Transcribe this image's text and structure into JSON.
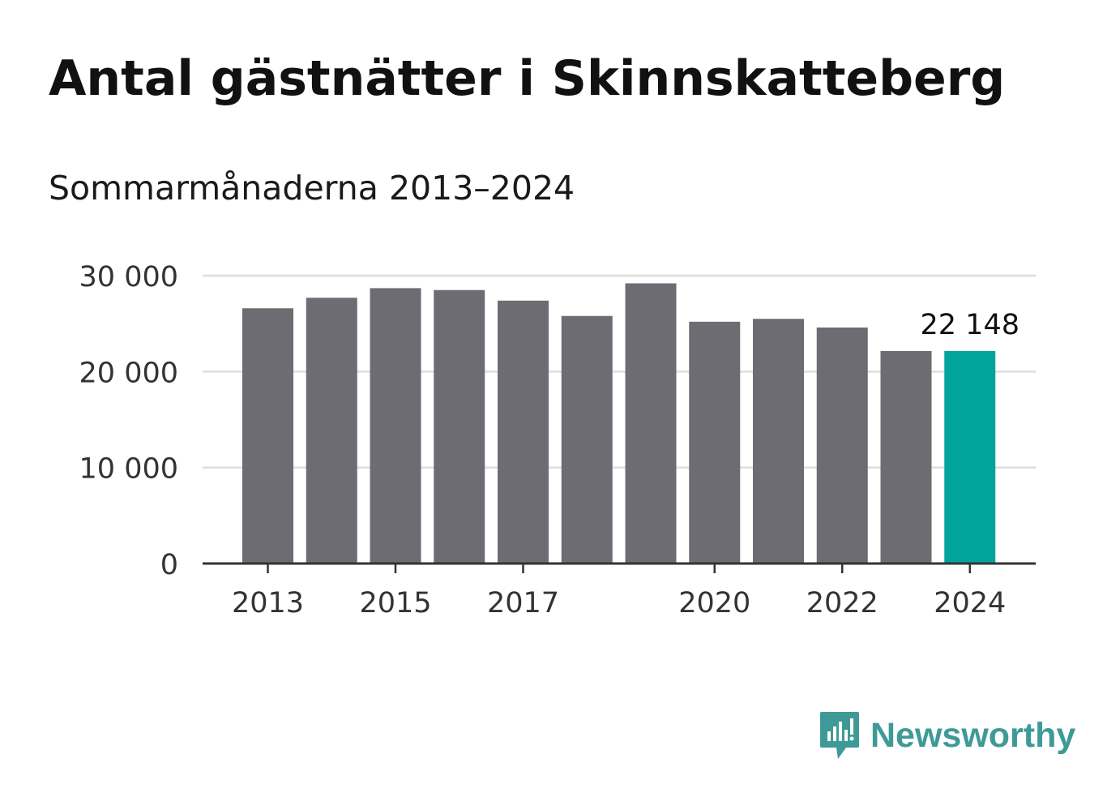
{
  "chart_data": {
    "type": "bar",
    "title": "Antal gästnätter i Skinnskatteberg",
    "subtitle": "Sommarmånaderna 2013–2024",
    "categories": [
      "2013",
      "2014",
      "2015",
      "2016",
      "2017",
      "2018",
      "2019",
      "2020",
      "2021",
      "2022",
      "2023",
      "2024"
    ],
    "values": [
      26600,
      27700,
      28700,
      28500,
      27400,
      25800,
      29200,
      25200,
      25500,
      24600,
      22148,
      22148
    ],
    "x_tick_labels": [
      "2013",
      "2015",
      "2017",
      "2020",
      "2022",
      "2024"
    ],
    "y_ticks": [
      0,
      10000,
      20000,
      30000
    ],
    "y_tick_labels": [
      "0",
      "10 000",
      "20 000",
      "30 000"
    ],
    "ylim": [
      0,
      30000
    ],
    "grid": true,
    "highlight_index": 11,
    "highlight_label": "22 148",
    "colors": {
      "bar": "#6d6c72",
      "highlight": "#00a49a",
      "grid": "#dddddd",
      "axis": "#333333"
    }
  },
  "brand": {
    "name": "Newsworthy",
    "icon": "newsworthy-logo-icon",
    "color": "#3e9a96"
  }
}
